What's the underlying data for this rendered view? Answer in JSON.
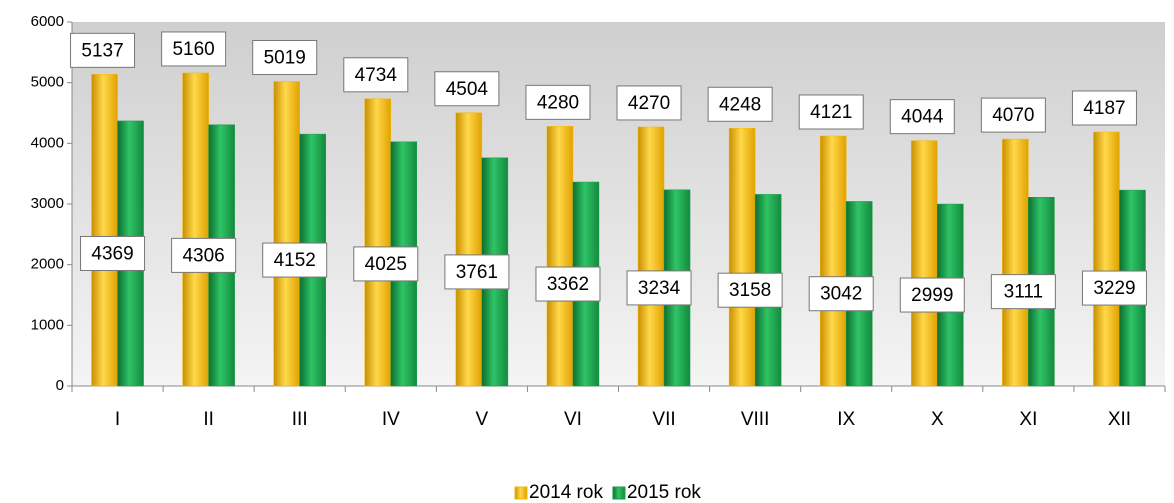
{
  "chart_data": {
    "type": "bar",
    "categories": [
      "I",
      "II",
      "III",
      "IV",
      "V",
      "VI",
      "VII",
      "VIII",
      "IX",
      "X",
      "XI",
      "XII"
    ],
    "series": [
      {
        "name": "2014 rok",
        "color": "#f5b800",
        "values": [
          5137,
          5160,
          5019,
          4734,
          4504,
          4280,
          4270,
          4248,
          4121,
          4044,
          4070,
          4187
        ]
      },
      {
        "name": "2015 rok",
        "color": "#1a9a4a",
        "values": [
          4369,
          4306,
          4152,
          4025,
          3761,
          3362,
          3234,
          3158,
          3042,
          2999,
          3111,
          3229
        ]
      }
    ],
    "ylim": [
      0,
      6000
    ],
    "yticks": [
      0,
      1000,
      2000,
      3000,
      4000,
      5000,
      6000
    ],
    "grid": false,
    "legend": "bottom"
  }
}
